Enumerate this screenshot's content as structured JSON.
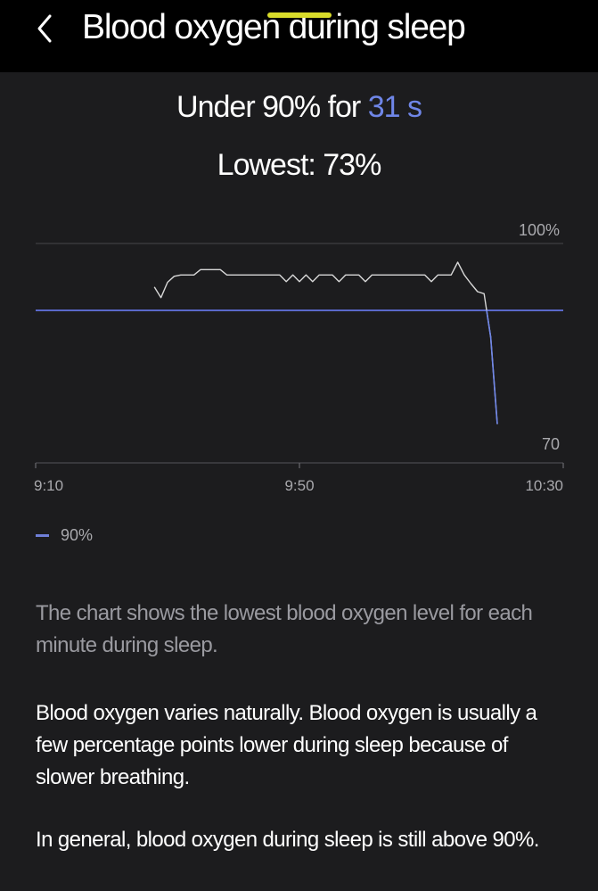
{
  "header": {
    "back_icon": "chevron-left-icon",
    "title": "Blood oxygen during sleep",
    "indicator_color": "#d9dc2a"
  },
  "summary": {
    "under_prefix": "Under 90% for ",
    "under_value": "31 s",
    "lowest": "Lowest: 73%"
  },
  "colors": {
    "background": "#1c1c1e",
    "accent": "#6f86e8",
    "threshold_line": "#5a68c9",
    "trace": "#d8d8d8"
  },
  "chart_data": {
    "type": "line",
    "x_unit": "time",
    "x_ticks": [
      "9:10",
      "9:50",
      "10:30"
    ],
    "y_top_label": "100%",
    "y_bottom_label": "70",
    "ylim": [
      70,
      100
    ],
    "grid": true,
    "threshold": {
      "value": 90,
      "label": "90%"
    },
    "series": [
      {
        "points": [
          [
            "9:28",
            93.5
          ],
          [
            "9:29",
            91.9
          ],
          [
            "9:30",
            94.2
          ],
          [
            "9:31",
            95.1
          ],
          [
            "9:32",
            95.3
          ],
          [
            "9:33",
            95.3
          ],
          [
            "9:34",
            95.3
          ],
          [
            "9:35",
            96.1
          ],
          [
            "9:36",
            96.1
          ],
          [
            "9:37",
            96.1
          ],
          [
            "9:38",
            96.1
          ],
          [
            "9:39",
            95.3
          ],
          [
            "9:40",
            95.3
          ],
          [
            "9:41",
            95.3
          ],
          [
            "9:42",
            95.3
          ],
          [
            "9:43",
            95.3
          ],
          [
            "9:44",
            95.3
          ],
          [
            "9:45",
            95.3
          ],
          [
            "9:46",
            95.3
          ],
          [
            "9:47",
            95.3
          ],
          [
            "9:48",
            94.3
          ],
          [
            "9:49",
            95.3
          ],
          [
            "9:50",
            94.3
          ],
          [
            "9:51",
            95.3
          ],
          [
            "9:52",
            94.3
          ],
          [
            "9:53",
            95.3
          ],
          [
            "9:54",
            95.3
          ],
          [
            "9:55",
            95.3
          ],
          [
            "9:56",
            94.3
          ],
          [
            "9:57",
            95.3
          ],
          [
            "9:58",
            95.3
          ],
          [
            "9:59",
            95.3
          ],
          [
            "10:00",
            94.3
          ],
          [
            "10:01",
            95.3
          ],
          [
            "10:02",
            95.3
          ],
          [
            "10:03",
            95.3
          ],
          [
            "10:04",
            95.3
          ],
          [
            "10:05",
            95.3
          ],
          [
            "10:06",
            95.3
          ],
          [
            "10:07",
            95.3
          ],
          [
            "10:08",
            95.3
          ],
          [
            "10:09",
            95.3
          ],
          [
            "10:10",
            94.3
          ],
          [
            "10:11",
            95.3
          ],
          [
            "10:12",
            95.3
          ],
          [
            "10:13",
            95.3
          ],
          [
            "10:14",
            97.2
          ],
          [
            "10:15",
            95.3
          ],
          [
            "10:16",
            94.0
          ],
          [
            "10:17",
            92.8
          ],
          [
            "10:18",
            92.5
          ],
          [
            "10:19",
            86.0
          ],
          [
            "10:20",
            73.0
          ]
        ]
      }
    ]
  },
  "legend": {
    "label": "90%"
  },
  "description": {
    "p1": "The chart shows the lowest blood oxygen level for each minute during sleep.",
    "p2": "Blood oxygen varies naturally. Blood oxygen is usually a few percentage points lower during sleep because of slower breathing.",
    "p3": "In general, blood oxygen during sleep is still above 90%."
  }
}
